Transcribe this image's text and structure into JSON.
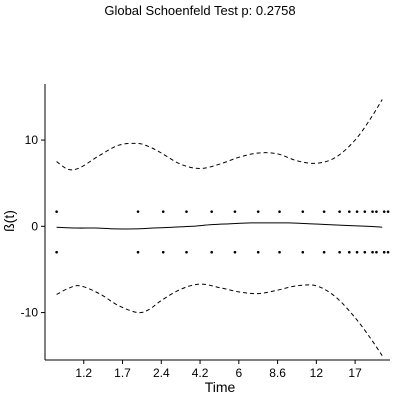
{
  "chart_data": {
    "type": "line",
    "title": "Global Schoenfeld Test p: 0.2758",
    "xlabel": "Time",
    "ylabel": "ß(t)",
    "x_tick_labels": [
      "1.2",
      "1.7",
      "2.4",
      "4.2",
      "6",
      "8.6",
      "12",
      "17"
    ],
    "y_ticks": [
      -10,
      0,
      10
    ],
    "xlim": [
      0,
      8.9
    ],
    "ylim": [
      -15.5,
      16.5
    ],
    "x_tick_positions": [
      1,
      2,
      3,
      4,
      5,
      6,
      7,
      8
    ],
    "grid": false,
    "legend": "none",
    "series": [
      {
        "style": "solid",
        "x": [
          0.3,
          0.8,
          1.3,
          1.8,
          2.3,
          2.8,
          3.3,
          3.8,
          4.3,
          4.8,
          5.3,
          5.8,
          6.3,
          6.8,
          7.3,
          7.8,
          8.3,
          8.7
        ],
        "values": [
          -0.1,
          -0.2,
          -0.2,
          -0.3,
          -0.3,
          -0.2,
          -0.1,
          0.0,
          0.2,
          0.3,
          0.4,
          0.4,
          0.4,
          0.3,
          0.2,
          0.1,
          0.0,
          -0.1
        ]
      },
      {
        "style": "dashed",
        "x": [
          0.3,
          0.6,
          0.9,
          1.4,
          1.9,
          2.4,
          2.7,
          3.0,
          3.5,
          4.0,
          4.5,
          5.0,
          5.5,
          6.0,
          6.5,
          7.0,
          7.5,
          8.0,
          8.4,
          8.7
        ],
        "values": [
          7.5,
          6.6,
          6.8,
          8.2,
          9.4,
          9.6,
          9.2,
          8.5,
          7.2,
          6.7,
          7.2,
          8.0,
          8.5,
          8.4,
          7.6,
          7.3,
          8.0,
          10.0,
          12.5,
          14.7
        ]
      },
      {
        "style": "dashed",
        "x": [
          0.3,
          0.6,
          0.9,
          1.4,
          1.9,
          2.4,
          2.7,
          3.0,
          3.5,
          4.0,
          4.5,
          5.0,
          5.5,
          6.0,
          6.5,
          7.0,
          7.5,
          8.0,
          8.4,
          8.7
        ],
        "values": [
          -7.9,
          -7.2,
          -6.9,
          -7.8,
          -9.2,
          -10.0,
          -9.6,
          -8.6,
          -7.3,
          -6.7,
          -7.1,
          -7.6,
          -7.8,
          -7.4,
          -6.9,
          -6.9,
          -8.2,
          -10.6,
          -13.0,
          -15.0
        ]
      }
    ],
    "points": {
      "x": [
        0.3,
        2.4,
        3.05,
        3.65,
        4.3,
        4.9,
        5.5,
        6.05,
        6.65,
        7.2,
        7.6,
        7.85,
        8.05,
        8.25,
        8.45,
        8.55,
        8.75,
        8.85
      ],
      "y_upper": 1.7,
      "y_lower": -3.0
    }
  }
}
